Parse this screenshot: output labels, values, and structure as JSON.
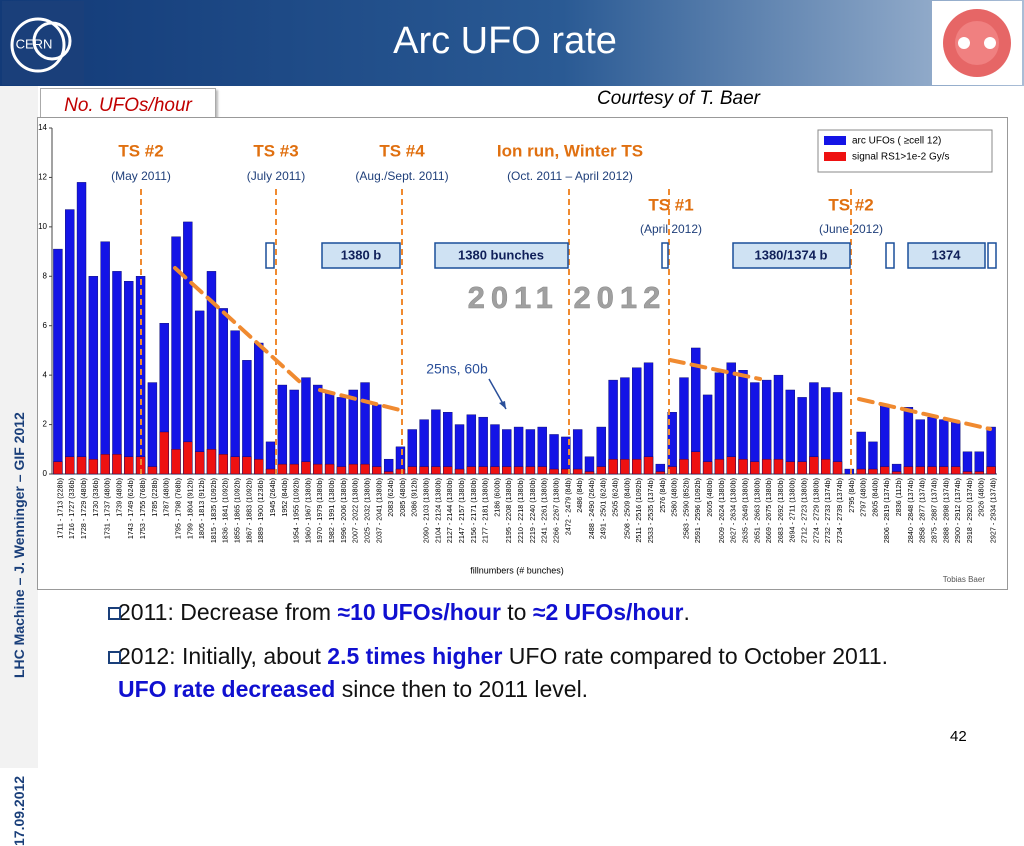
{
  "header": {
    "title": "Arc UFO rate"
  },
  "side": {
    "author": "LHC Machine  –  J. Wenninger – GIF 2012",
    "date": "17.09.2012"
  },
  "ylabel_box": "No. UFOs/hour",
  "courtesy": "Courtesy of T. Baer",
  "chart_data": {
    "type": "bar",
    "xlabel": "fillnumbers (# bunches)",
    "credit": "Tobias Baer",
    "ylim": [
      0,
      14
    ],
    "yticks": [
      0,
      2,
      4,
      6,
      8,
      10,
      12,
      14
    ],
    "categories": [
      "1711 - 1713 (228b)",
      "1716 - 1727 (336b)",
      "1728 - 1729 (480b)",
      "1730 (336b)",
      "1731 - 1737 (480b)",
      "1739 (480b)",
      "1743 - 1749 (624b)",
      "1753 - 1755 (768b)",
      "1785 (228b)",
      "1787 (480b)",
      "1795 - 1798 (768b)",
      "1799 - 1804 (912b)",
      "1805 - 1813 (912b)",
      "1815 - 1835 (1092b)",
      "1836 - 1841 (1092b)",
      "1855 - 1865 (1092b)",
      "1867 - 1883 (1092b)",
      "1889 - 1900 (1236b)",
      "1945 (264b)",
      "1952 (840b)",
      "1954 - 1955 (1092b)",
      "1960 - 1967 (1380b)",
      "1970 - 1979 (1380b)",
      "1982 - 1991 (1380b)",
      "1996 - 2006 (1380b)",
      "2007 - 2022 (1380b)",
      "2025 - 2032 (1380b)",
      "2037 - 2041 (1380b)",
      "2083 (624b)",
      "2085 (480b)",
      "2086 (912b)",
      "2090 - 2103 (1380b)",
      "2104 - 2124 (1380b)",
      "2127 - 2144 (1380b)",
      "2147 - 2157 (1380b)",
      "2156 - 2171 (1380b)",
      "2177 - 2181 (1380b)",
      "2186 (600b)",
      "2195 - 2208 (1380b)",
      "2210 - 2218 (1380b)",
      "2219 - 2240 (1380b)",
      "2241 - 2261 (1380b)",
      "2266 - 2267 (1380b)",
      "2472 - 2479 (84b)",
      "2486 (84b)",
      "2488 - 2490 (264b)",
      "2491 - 2501 (624b)",
      "2505 (624b)",
      "2508 - 2509 (840b)",
      "2511 - 2516 (1092b)",
      "2533 - 2535 (1374b)",
      "2576 (84b)",
      "2580 (480b)",
      "2583 - 2590 (852b)",
      "2591 - 2596 (1092b)",
      "2605 (480b)",
      "2609 - 2624 (1380b)",
      "2627 - 2634 (1380b)",
      "2635 - 2649 (1380b)",
      "2651 - 2663 (1380b)",
      "2669 - 2675 (1380b)",
      "2683 - 2692 (1380b)",
      "2694 - 2711 (1380b)",
      "2712 - 2723 (1380b)",
      "2724 - 2729 (1380b)",
      "2732 - 2733 (1374b)",
      "2734 - 2739 (1374b)",
      "2795 (84b)",
      "2797 (480b)",
      "2805 (840b)",
      "2806 - 2819 (1374b)",
      "2836 (112b)",
      "2840 - 2848 (1374b)",
      "2858 - 2877 (1374b)",
      "2875 - 2887 (1374b)",
      "2888 - 2898 (1374b)",
      "2900 - 2912 (1374b)",
      "2918 - 2920 (1374b)",
      "2926 (480b)",
      "2927 - 2934 (1374b)"
    ],
    "series": [
      {
        "name": "arc UFOs ( ≥cell 12)",
        "color": "#1414e6",
        "values": [
          9.1,
          10.7,
          11.8,
          8.0,
          9.4,
          8.2,
          7.8,
          8.0,
          3.7,
          6.1,
          9.6,
          10.2,
          6.6,
          8.2,
          6.7,
          5.8,
          4.6,
          5.3,
          1.3,
          3.6,
          3.4,
          3.9,
          3.6,
          3.3,
          3.1,
          3.4,
          3.7,
          2.8,
          0.6,
          1.1,
          1.8,
          2.2,
          2.6,
          2.5,
          2.0,
          2.4,
          2.3,
          2.0,
          1.8,
          1.9,
          1.8,
          1.9,
          1.6,
          1.5,
          1.8,
          0.7,
          1.9,
          3.8,
          3.9,
          4.3,
          4.5,
          0.4,
          2.5,
          3.9,
          5.1,
          3.2,
          4.1,
          4.5,
          4.2,
          3.7,
          3.8,
          4.0,
          3.4,
          3.1,
          3.7,
          3.5,
          3.3,
          0.2,
          1.7,
          1.3,
          2.8,
          0.4,
          2.7,
          2.2,
          2.3,
          2.2,
          2.1,
          0.9,
          0.9,
          1.9
        ]
      },
      {
        "name": "signal RS1>1e-2 Gy/s",
        "color": "#ee1111",
        "values": [
          0.5,
          0.7,
          0.7,
          0.6,
          0.8,
          0.8,
          0.7,
          0.7,
          0.3,
          1.7,
          1.0,
          1.3,
          0.9,
          1.0,
          0.8,
          0.7,
          0.7,
          0.6,
          0.2,
          0.4,
          0.4,
          0.5,
          0.4,
          0.4,
          0.3,
          0.4,
          0.4,
          0.3,
          0.1,
          0.2,
          0.3,
          0.3,
          0.3,
          0.3,
          0.2,
          0.3,
          0.3,
          0.3,
          0.3,
          0.3,
          0.3,
          0.3,
          0.2,
          0.2,
          0.2,
          0.1,
          0.3,
          0.6,
          0.6,
          0.6,
          0.7,
          0.1,
          0.3,
          0.6,
          0.9,
          0.5,
          0.6,
          0.7,
          0.6,
          0.5,
          0.6,
          0.6,
          0.5,
          0.5,
          0.7,
          0.6,
          0.5,
          0.0,
          0.2,
          0.2,
          0.3,
          0.1,
          0.3,
          0.3,
          0.3,
          0.3,
          0.3,
          0.1,
          0.1,
          0.3
        ]
      }
    ],
    "annotations": [
      "TS #2",
      "(May 2011)",
      "TS #3",
      "(July 2011)",
      "TS #4",
      "(Aug./Sept. 2011)",
      "Ion run, Winter TS",
      "(Oct. 2011 – April 2012)",
      "TS #1",
      "(April 2012)",
      "TS #2",
      "(June 2012)",
      "1380 b",
      "1380 bunches",
      "1380/1374  b",
      "1374",
      "2011  2012",
      "25ns, 60b"
    ]
  },
  "bullets": [
    [
      "2011: Decrease from ",
      "≈10 UFOs/hour",
      " to ",
      "≈2 UFOs/hour",
      "."
    ],
    [
      "2012: Initially, about ",
      "2.5 times higher",
      " UFO rate compared to October 2011. ",
      "UFO rate decreased",
      " since then to 2011 level."
    ]
  ],
  "page_number": "42"
}
